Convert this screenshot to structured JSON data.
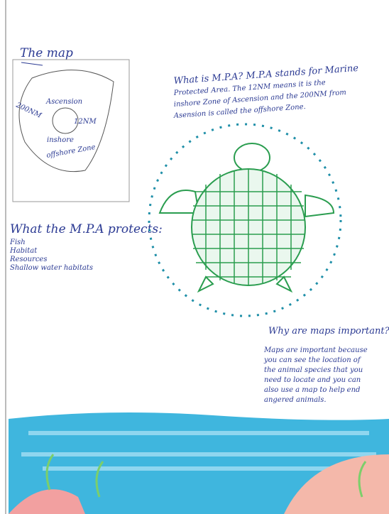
{
  "map": {
    "title": "The map",
    "labels": [
      "Ascension",
      "200NM",
      "12NM",
      "inshore",
      "offshore Zone"
    ]
  },
  "mpa": {
    "lines": [
      "What is M.P.A? M.P.A stands for Marine",
      "Protected Area. The 12NM means it is the",
      "inshore Zone of Ascension and the 200NM from",
      "Asension is called the offshore Zone."
    ]
  },
  "protects": {
    "title": "What the M.P.A protects:",
    "items": [
      "Fish",
      "Habitat",
      "Resources",
      "Shallow water habitats"
    ]
  },
  "maps": {
    "title": "Why are maps important?",
    "lines": [
      "Maps are important because",
      "you can see the location of",
      "the animal species that you",
      "need to locate and you can",
      "also use a map to help end",
      "angered animals."
    ]
  }
}
